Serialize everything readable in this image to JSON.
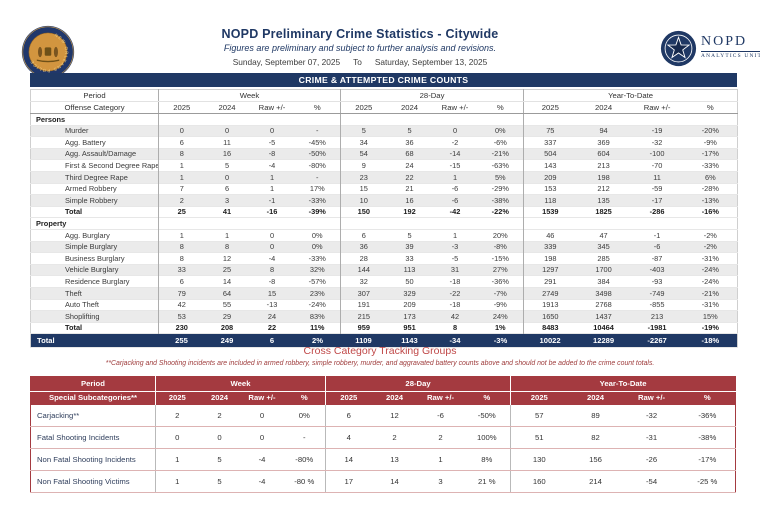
{
  "page": {
    "title": "NOPD Preliminary Crime Statistics - Citywide",
    "subtitle": "Figures are preliminary and subject to further analysis and revisions.",
    "date_from": "Sunday, September 07, 2025",
    "date_separator": "To",
    "date_to": "Saturday, September 13, 2025",
    "banner": "CRIME & ATTEMPTED CRIME COUNTS"
  },
  "logos": {
    "left_icon": "police-badge-icon",
    "left_ring_text": "NEW ORLEANS POLICE",
    "right_icon": "star-icon",
    "right_name": "NOPD",
    "right_sub": "ANALYTICS UNIT"
  },
  "colors": {
    "navy": "#1F3864",
    "header_red": "#A43A40",
    "title_red": "#C04949",
    "row_stripe": "#EBEBEB"
  },
  "crime_table": {
    "header": {
      "period": "Period",
      "offense": "Offense Category",
      "groups": [
        "Week",
        "28-Day",
        "Year-To-Date"
      ],
      "subcols": [
        "2025",
        "2024",
        "Raw +/-",
        "%"
      ]
    },
    "sections": [
      {
        "name": "Persons",
        "rows": [
          {
            "label": "Murder",
            "week": [
              "0",
              "0",
              "0",
              "-"
            ],
            "day28": [
              "5",
              "5",
              "0",
              "0%"
            ],
            "ytd": [
              "75",
              "94",
              "-19",
              "-20%"
            ]
          },
          {
            "label": "Agg. Battery",
            "week": [
              "6",
              "11",
              "-5",
              "-45%"
            ],
            "day28": [
              "34",
              "36",
              "-2",
              "-6%"
            ],
            "ytd": [
              "337",
              "369",
              "-32",
              "-9%"
            ]
          },
          {
            "label": "Agg. Assault/Damage",
            "week": [
              "8",
              "16",
              "-8",
              "-50%"
            ],
            "day28": [
              "54",
              "68",
              "-14",
              "-21%"
            ],
            "ytd": [
              "504",
              "604",
              "-100",
              "-17%"
            ]
          },
          {
            "label": "First & Second Degree Rape",
            "week": [
              "1",
              "5",
              "-4",
              "-80%"
            ],
            "day28": [
              "9",
              "24",
              "-15",
              "-63%"
            ],
            "ytd": [
              "143",
              "213",
              "-70",
              "-33%"
            ]
          },
          {
            "label": "Third Degree Rape",
            "week": [
              "1",
              "0",
              "1",
              "-"
            ],
            "day28": [
              "23",
              "22",
              "1",
              "5%"
            ],
            "ytd": [
              "209",
              "198",
              "11",
              "6%"
            ]
          },
          {
            "label": "Armed Robbery",
            "week": [
              "7",
              "6",
              "1",
              "17%"
            ],
            "day28": [
              "15",
              "21",
              "-6",
              "-29%"
            ],
            "ytd": [
              "153",
              "212",
              "-59",
              "-28%"
            ]
          },
          {
            "label": "Simple Robbery",
            "week": [
              "2",
              "3",
              "-1",
              "-33%"
            ],
            "day28": [
              "10",
              "16",
              "-6",
              "-38%"
            ],
            "ytd": [
              "118",
              "135",
              "-17",
              "-13%"
            ]
          },
          {
            "label": "Total",
            "week": [
              "25",
              "41",
              "-16",
              "-39%"
            ],
            "day28": [
              "150",
              "192",
              "-42",
              "-22%"
            ],
            "ytd": [
              "1539",
              "1825",
              "-286",
              "-16%"
            ]
          }
        ]
      },
      {
        "name": "Property",
        "rows": [
          {
            "label": "Agg. Burglary",
            "week": [
              "1",
              "1",
              "0",
              "0%"
            ],
            "day28": [
              "6",
              "5",
              "1",
              "20%"
            ],
            "ytd": [
              "46",
              "47",
              "-1",
              "-2%"
            ]
          },
          {
            "label": "Simple Burglary",
            "week": [
              "8",
              "8",
              "0",
              "0%"
            ],
            "day28": [
              "36",
              "39",
              "-3",
              "-8%"
            ],
            "ytd": [
              "339",
              "345",
              "-6",
              "-2%"
            ]
          },
          {
            "label": "Business Burglary",
            "week": [
              "8",
              "12",
              "-4",
              "-33%"
            ],
            "day28": [
              "28",
              "33",
              "-5",
              "-15%"
            ],
            "ytd": [
              "198",
              "285",
              "-87",
              "-31%"
            ]
          },
          {
            "label": "Vehicle Burglary",
            "week": [
              "33",
              "25",
              "8",
              "32%"
            ],
            "day28": [
              "144",
              "113",
              "31",
              "27%"
            ],
            "ytd": [
              "1297",
              "1700",
              "-403",
              "-24%"
            ]
          },
          {
            "label": "Residence Burglary",
            "week": [
              "6",
              "14",
              "-8",
              "-57%"
            ],
            "day28": [
              "32",
              "50",
              "-18",
              "-36%"
            ],
            "ytd": [
              "291",
              "384",
              "-93",
              "-24%"
            ]
          },
          {
            "label": "Theft",
            "week": [
              "79",
              "64",
              "15",
              "23%"
            ],
            "day28": [
              "307",
              "329",
              "-22",
              "-7%"
            ],
            "ytd": [
              "2749",
              "3498",
              "-749",
              "-21%"
            ]
          },
          {
            "label": "Auto Theft",
            "week": [
              "42",
              "55",
              "-13",
              "-24%"
            ],
            "day28": [
              "191",
              "209",
              "-18",
              "-9%"
            ],
            "ytd": [
              "1913",
              "2768",
              "-855",
              "-31%"
            ]
          },
          {
            "label": "Shoplifting",
            "week": [
              "53",
              "29",
              "24",
              "83%"
            ],
            "day28": [
              "215",
              "173",
              "42",
              "24%"
            ],
            "ytd": [
              "1650",
              "1437",
              "213",
              "15%"
            ]
          },
          {
            "label": "Total",
            "week": [
              "230",
              "208",
              "22",
              "11%"
            ],
            "day28": [
              "959",
              "951",
              "8",
              "1%"
            ],
            "ytd": [
              "8483",
              "10464",
              "-1981",
              "-19%"
            ]
          }
        ]
      }
    ],
    "grand_total": {
      "label": "Total",
      "week": [
        "255",
        "249",
        "6",
        "2%"
      ],
      "day28": [
        "1109",
        "1143",
        "-34",
        "-3%"
      ],
      "ytd": [
        "10022",
        "12289",
        "-2267",
        "-18%"
      ]
    }
  },
  "cross_category": {
    "title": "Cross Category Tracking Groups",
    "note": "**Carjacking and Shooting incidents are included in armed robbery, simple robbery, murder, and aggravated battery counts above and should not be added to the crime count totals."
  },
  "subcat_table": {
    "header": {
      "period": "Period",
      "label": "Special Subcategories**",
      "groups": [
        "Week",
        "28-Day",
        "Year-To-Date"
      ],
      "subcols": [
        "2025",
        "2024",
        "Raw +/-",
        "%"
      ]
    },
    "rows": [
      {
        "label": "Carjacking**",
        "week": [
          "2",
          "2",
          "0",
          "0%"
        ],
        "day28": [
          "6",
          "12",
          "-6",
          "-50%"
        ],
        "ytd": [
          "57",
          "89",
          "-32",
          "-36%"
        ]
      },
      {
        "label": "Fatal Shooting Incidents",
        "week": [
          "0",
          "0",
          "0",
          "-"
        ],
        "day28": [
          "4",
          "2",
          "2",
          "100%"
        ],
        "ytd": [
          "51",
          "82",
          "-31",
          "-38%"
        ]
      },
      {
        "label": "Non Fatal Shooting Incidents",
        "week": [
          "1",
          "5",
          "-4",
          "-80%"
        ],
        "day28": [
          "14",
          "13",
          "1",
          "8%"
        ],
        "ytd": [
          "130",
          "156",
          "-26",
          "-17%"
        ]
      },
      {
        "label": "Non Fatal Shooting Victims",
        "week": [
          "1",
          "5",
          "-4",
          "-80 %"
        ],
        "day28": [
          "17",
          "14",
          "3",
          "21 %"
        ],
        "ytd": [
          "160",
          "214",
          "-54",
          "-25 %"
        ]
      }
    ]
  }
}
